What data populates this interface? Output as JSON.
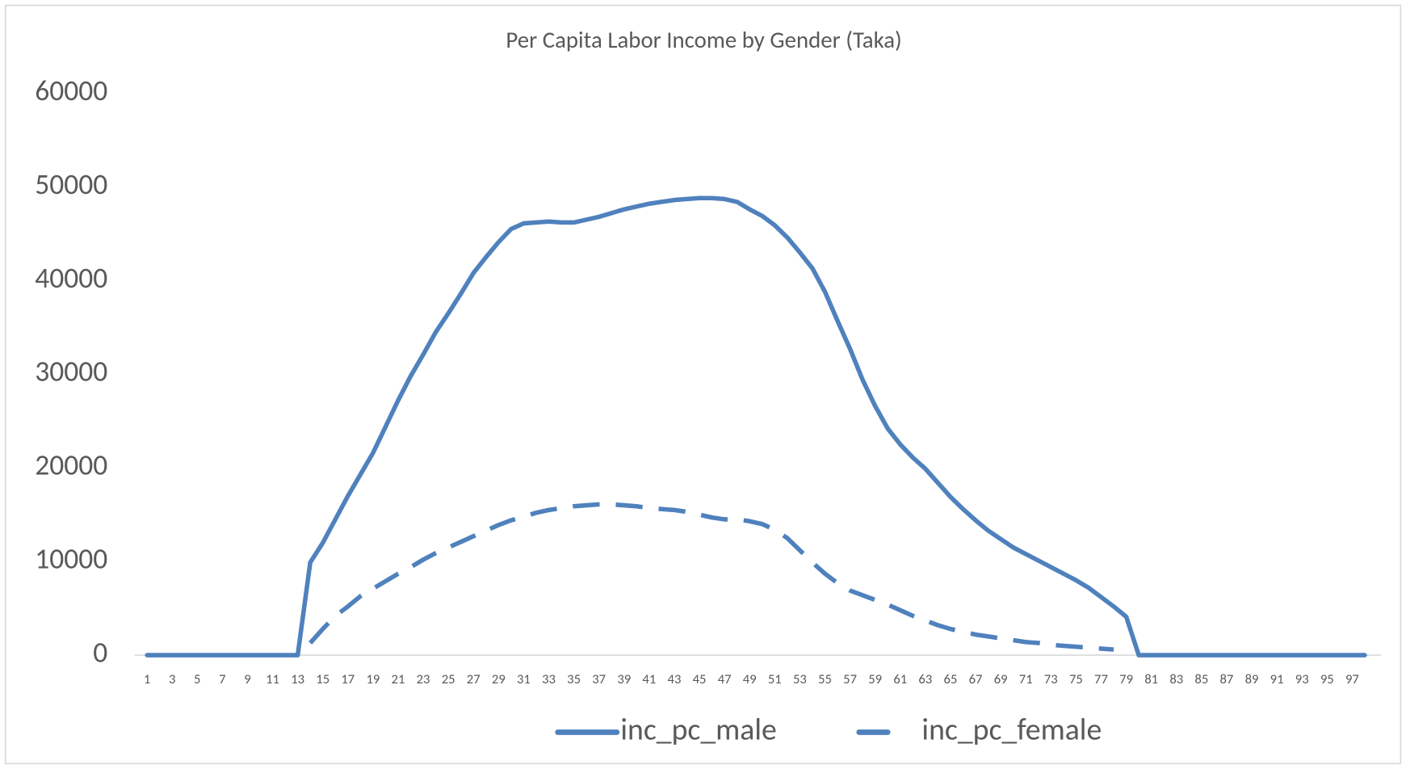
{
  "chart_data": {
    "type": "line",
    "title": "Per Capita Labor Income by Gender (Taka)",
    "categories": [
      "1",
      null,
      "3",
      null,
      "5",
      null,
      "7",
      null,
      "9",
      null,
      "11",
      null,
      "13",
      null,
      "15",
      null,
      "17",
      null,
      "19",
      null,
      "21",
      null,
      "23",
      null,
      "25",
      null,
      "27",
      null,
      "29",
      null,
      "31",
      null,
      "33",
      null,
      "35",
      null,
      "37",
      null,
      "39",
      null,
      "41",
      null,
      "43",
      null,
      "45",
      null,
      "47",
      null,
      "49",
      null,
      "51",
      null,
      "53",
      null,
      "55",
      null,
      "57",
      null,
      "59",
      null,
      "61",
      null,
      "63",
      null,
      "65",
      null,
      "67",
      null,
      "69",
      null,
      "71",
      null,
      "73",
      null,
      "75",
      null,
      "77",
      null,
      "79",
      null,
      "81",
      null,
      "83",
      null,
      "85",
      null,
      "87",
      null,
      "89",
      null,
      "91",
      null,
      "93",
      null,
      "95",
      null,
      "97",
      null
    ],
    "series": [
      {
        "name": "inc_pc_male",
        "color": "#4f81bd",
        "dash": "solid",
        "values": [
          0,
          0,
          0,
          0,
          0,
          0,
          0,
          0,
          0,
          0,
          0,
          0,
          0,
          9900,
          12000,
          14500,
          17000,
          19300,
          21600,
          24400,
          27200,
          29800,
          32100,
          34500,
          36500,
          38600,
          40800,
          42500,
          44100,
          45500,
          46100,
          46200,
          46300,
          46200,
          46200,
          46500,
          46800,
          47200,
          47600,
          47900,
          48200,
          48400,
          48600,
          48700,
          48800,
          48800,
          48700,
          48400,
          47600,
          46900,
          45900,
          44600,
          43000,
          41300,
          38800,
          35700,
          32700,
          29400,
          26600,
          24200,
          22500,
          21100,
          19900,
          18400,
          16900,
          15600,
          14400,
          13300,
          12400,
          11500,
          10800,
          10100,
          9400,
          8700,
          8000,
          7200,
          6200,
          5200,
          4100,
          0,
          0,
          0,
          0,
          0,
          0,
          0,
          0,
          0,
          0,
          0,
          0,
          0,
          0,
          0,
          0,
          0,
          0,
          0
        ]
      },
      {
        "name": "inc_pc_female",
        "color": "#4f81bd",
        "dash": "dashed",
        "values": [
          null,
          null,
          null,
          null,
          null,
          null,
          null,
          null,
          null,
          null,
          null,
          null,
          null,
          1300,
          2800,
          4200,
          5200,
          6300,
          7100,
          7900,
          8700,
          9400,
          10200,
          10900,
          11500,
          12100,
          12700,
          13300,
          13900,
          14400,
          14800,
          15200,
          15500,
          15700,
          15900,
          16000,
          16100,
          16100,
          16000,
          15900,
          15700,
          15600,
          15500,
          15300,
          15000,
          14700,
          14500,
          14500,
          14300,
          14000,
          13400,
          12500,
          11200,
          9900,
          8700,
          7700,
          6900,
          6400,
          5900,
          5400,
          4800,
          4200,
          3700,
          3200,
          2800,
          2500,
          2200,
          2000,
          1800,
          1600,
          1400,
          1300,
          1100,
          1000,
          900,
          800,
          700,
          600,
          null,
          null,
          null,
          null,
          null,
          null,
          null,
          null,
          null,
          null,
          null,
          null,
          null,
          null,
          null,
          null,
          null,
          null,
          null,
          null
        ]
      }
    ],
    "ylim": [
      0,
      60000
    ],
    "yticks": [
      0,
      10000,
      20000,
      30000,
      40000,
      50000,
      60000
    ],
    "grid": false,
    "legend": "bottom"
  }
}
